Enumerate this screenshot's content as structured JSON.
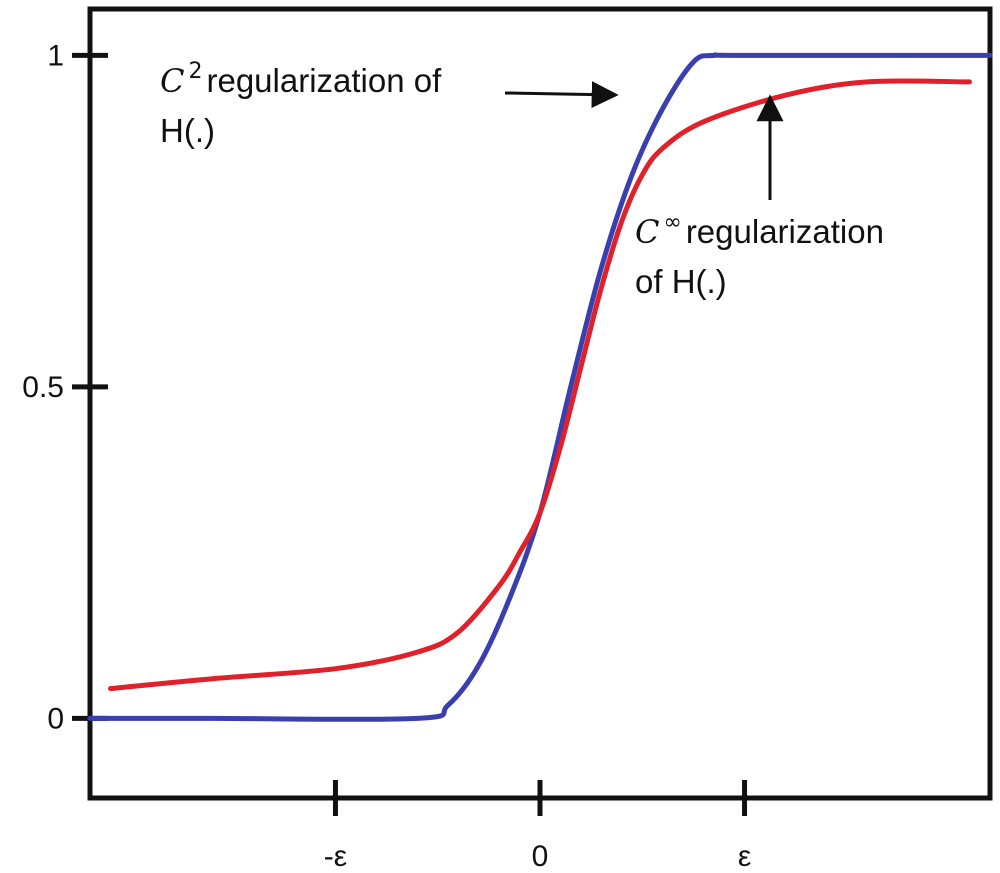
{
  "chart_data": {
    "type": "line",
    "xlabel": "",
    "ylabel": "",
    "xlim": [
      -2.2,
      2.2
    ],
    "ylim": [
      -0.12,
      1.07
    ],
    "xticks": [
      {
        "value": -1,
        "label": "-ε"
      },
      {
        "value": 0,
        "label": "0"
      },
      {
        "value": 1,
        "label": "ε"
      }
    ],
    "yticks": [
      {
        "value": 0,
        "label": "0"
      },
      {
        "value": 0.5,
        "label": "0.5"
      },
      {
        "value": 1,
        "label": "1"
      }
    ],
    "grid": false,
    "series": [
      {
        "color": "#3a3fb0",
        "x": [
          -2.2,
          -1.6,
          -0.6,
          -0.45,
          -0.3,
          -0.15,
          0,
          0.15,
          0.3,
          0.45,
          0.6,
          0.75,
          0.85,
          1.0,
          2.2
        ],
        "y": [
          0,
          0,
          0,
          0.02,
          0.08,
          0.18,
          0.31,
          0.5,
          0.68,
          0.82,
          0.92,
          0.99,
          1.0,
          1.0,
          1.0
        ]
      },
      {
        "color": "#e0202a",
        "x": [
          -2.1,
          -1.6,
          -1.0,
          -0.6,
          -0.4,
          -0.2,
          -0.1,
          0,
          0.1,
          0.2,
          0.3,
          0.4,
          0.5,
          0.6,
          0.8,
          1.2,
          1.6,
          2.1
        ],
        "y": [
          0.045,
          0.06,
          0.075,
          0.1,
          0.13,
          0.2,
          0.25,
          0.31,
          0.41,
          0.53,
          0.65,
          0.75,
          0.82,
          0.86,
          0.9,
          0.94,
          0.96,
          0.96
        ]
      }
    ],
    "annotations": [
      {
        "prefix": "C",
        "sup": "2",
        "line1": " regularization of",
        "line2": "H(.)"
      },
      {
        "prefix": "C",
        "sup": "∞",
        "line1": " regularization",
        "line2": "of H(.)"
      }
    ]
  }
}
